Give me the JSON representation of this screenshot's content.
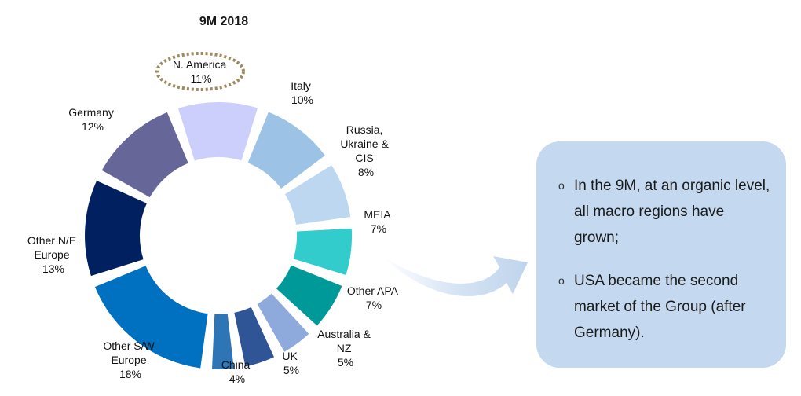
{
  "chart_data": {
    "type": "pie",
    "title": "9M 2018",
    "style": "exploded-donut",
    "highlighted": "N. America",
    "slices": [
      {
        "name": "N. America",
        "value": 11,
        "label": "11%",
        "color": "#cccffb"
      },
      {
        "name": "Italy",
        "value": 10,
        "label": "10%",
        "color": "#9cc3e6"
      },
      {
        "name": "Russia, Ukraine & CIS",
        "value": 8,
        "label": "8%",
        "color": "#bcd7ef"
      },
      {
        "name": "MEIA",
        "value": 7,
        "label": "7%",
        "color": "#33cccc"
      },
      {
        "name": "Other APA",
        "value": 7,
        "label": "7%",
        "color": "#009999"
      },
      {
        "name": "Australia & NZ",
        "value": 5,
        "label": "5%",
        "color": "#8eaadc"
      },
      {
        "name": "UK",
        "value": 5,
        "label": "5%",
        "color": "#2f5597"
      },
      {
        "name": "China",
        "value": 4,
        "label": "4%",
        "color": "#2e75b6"
      },
      {
        "name": "Other S/W Europe",
        "value": 18,
        "label": "18%",
        "color": "#0070c0"
      },
      {
        "name": "Other N/E Europe",
        "value": 13,
        "label": "13%",
        "color": "#002060"
      },
      {
        "name": "Germany",
        "value": 12,
        "label": "12%",
        "color": "#666699"
      }
    ]
  },
  "labels": {
    "n_america": [
      "N. America",
      "11%"
    ],
    "italy": [
      "Italy",
      "10%"
    ],
    "russia": [
      "Russia,",
      "Ukraine &",
      "CIS",
      "8%"
    ],
    "meia": [
      "MEIA",
      "7%"
    ],
    "other_apa": [
      "Other APA",
      "7%"
    ],
    "australia": [
      "Australia &",
      "NZ",
      "5%"
    ],
    "uk": [
      "UK",
      "5%"
    ],
    "china": [
      "China",
      "4%"
    ],
    "other_sw": [
      "Other S/W",
      "Europe",
      "18%"
    ],
    "other_ne": [
      "Other N/E",
      "Europe",
      "13%"
    ],
    "germany": [
      "Germany",
      "12%"
    ]
  },
  "callout": {
    "bullet_symbol": "o",
    "bullets": [
      "In the 9M, at an organic level, all macro regions have grown;",
      "USA became the second market of the Group (after Germany)."
    ]
  }
}
